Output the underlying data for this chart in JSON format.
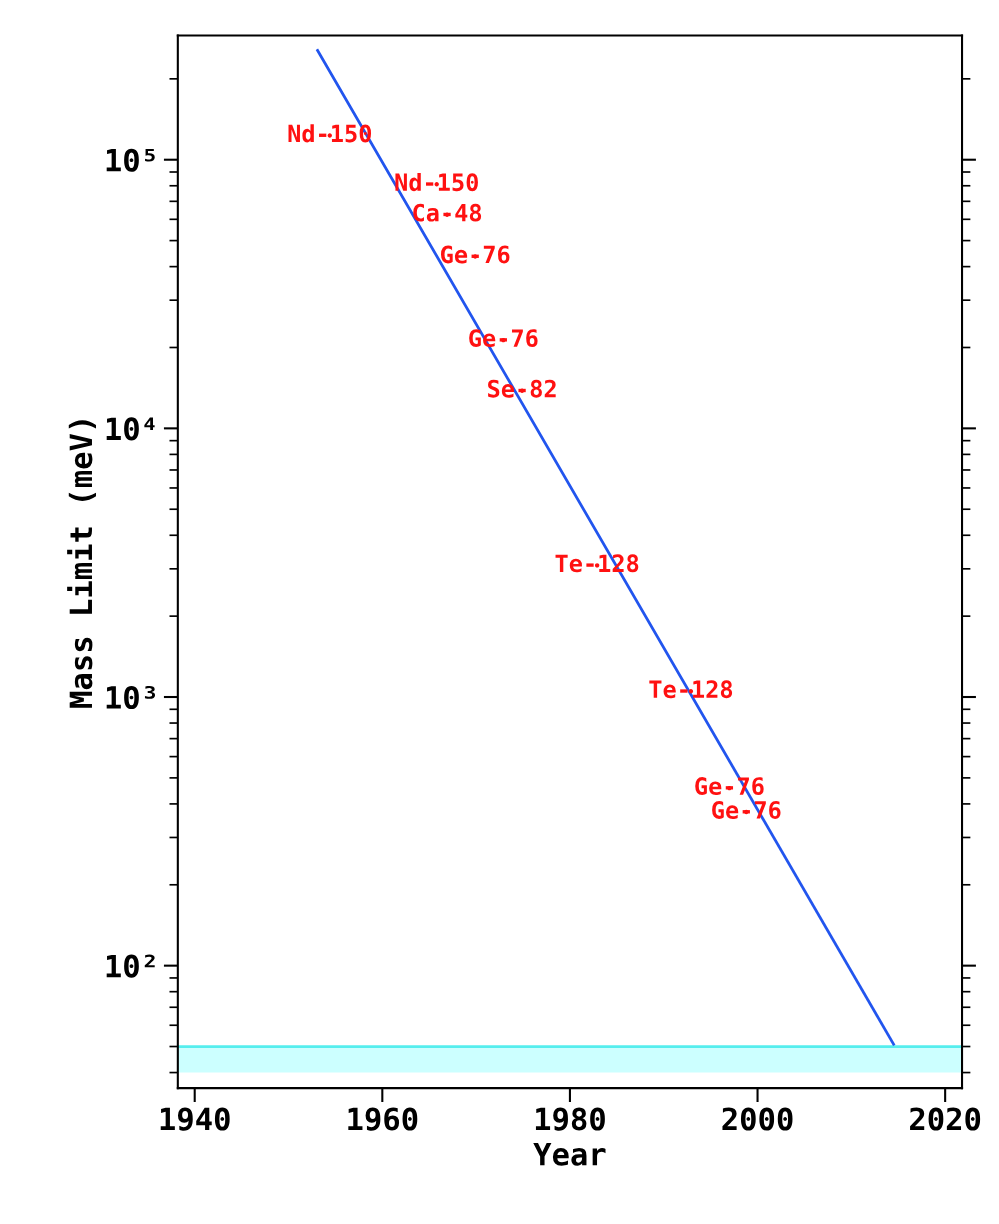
{
  "chart_data": {
    "type": "line",
    "xlabel": "Year",
    "ylabel": "Mass Limit (meV)",
    "log": "y",
    "xlim": [
      1938.2,
      2021.8
    ],
    "xticks": [
      1940,
      1960,
      1980,
      2000,
      2020
    ],
    "ylim": [
      35,
      290000
    ],
    "yticks": [
      {
        "value": 100,
        "label": "10²"
      },
      {
        "value": 1000,
        "label": "10³"
      },
      {
        "value": 10000,
        "label": "10⁴"
      },
      {
        "value": 100000,
        "label": "10⁵"
      }
    ],
    "grid": false,
    "legend": false,
    "series": [
      {
        "x": [
          1953.1,
          2014.5
        ],
        "values": [
          255000,
          51
        ],
        "color": "#2255ee"
      },
      {
        "type": "scatter",
        "marker": "circle",
        "color": "#ff1111",
        "x": [
          1954.4,
          1965.8,
          1966.9,
          1969.9,
          1972.9,
          1974.9,
          1982.9,
          1992.9,
          1997.0,
          1998.8
        ],
        "values": [
          123000,
          81000,
          62400,
          43600,
          21300,
          13800,
          3090,
          1050,
          458,
          373
        ],
        "value_labels": [
          "Nd-150",
          "Nd-150",
          "Ca-48",
          "Ge-76",
          "Ge-76",
          "Se-82",
          "Te-128",
          "Te-128",
          "Ge-76",
          "Ge-76"
        ]
      }
    ],
    "bands": [
      {
        "axis": "y",
        "from": 40,
        "to": 50,
        "color": "#ccffff"
      }
    ],
    "ref_lines": [
      {
        "axis": "y",
        "value": 50,
        "color": "#55eeee"
      }
    ]
  }
}
